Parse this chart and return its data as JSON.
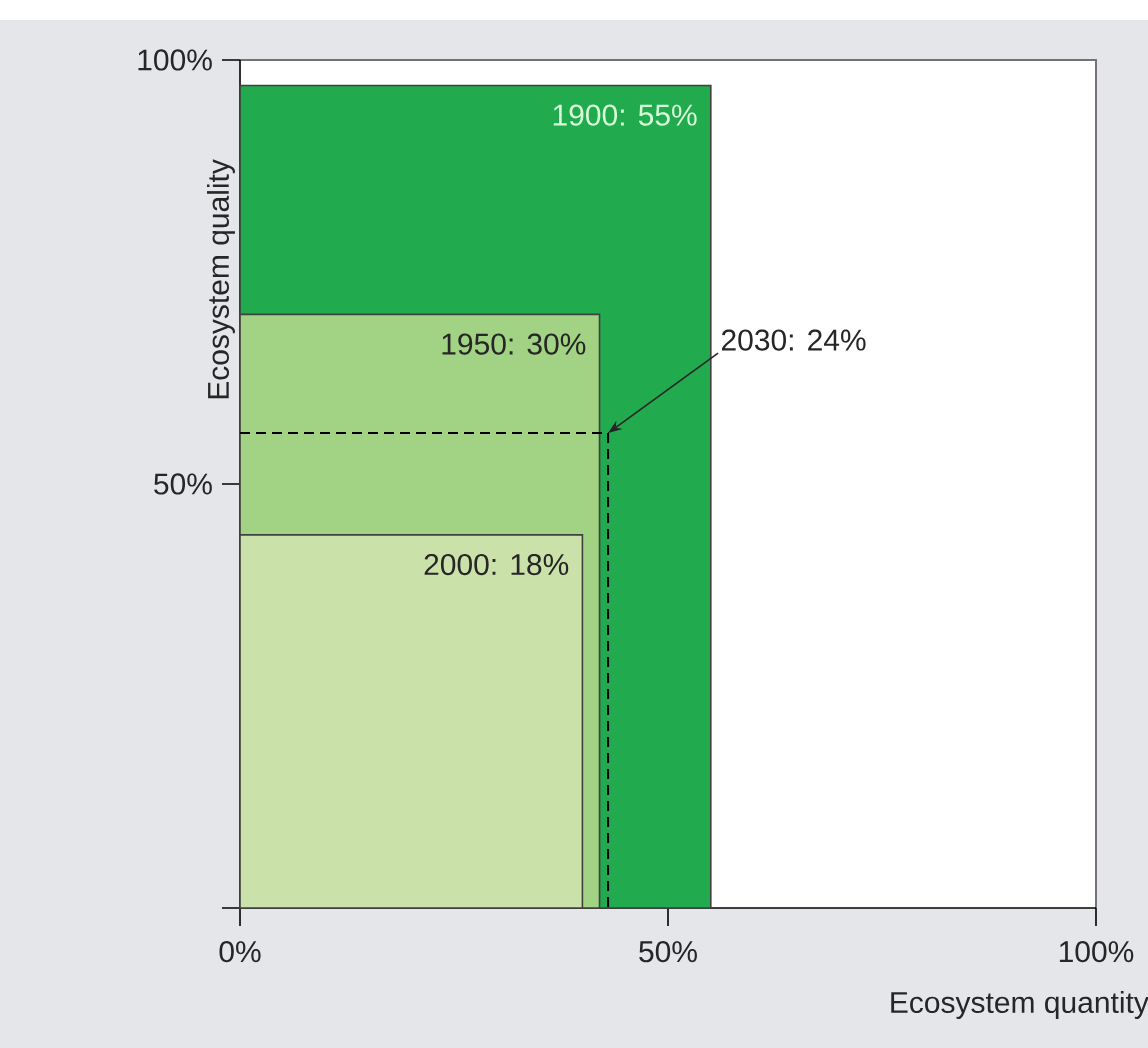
{
  "chart_data": {
    "type": "area",
    "xlabel": "Ecosystem quantity",
    "ylabel": "Ecosystem quality",
    "xlim": [
      0,
      100
    ],
    "ylim": [
      0,
      100
    ],
    "xticks": [
      {
        "value": 0,
        "label": "0%"
      },
      {
        "value": 50,
        "label": "50%"
      },
      {
        "value": 100,
        "label": "100%"
      }
    ],
    "yticks": [
      {
        "value": 0,
        "label": null
      },
      {
        "value": 50,
        "label": "50%"
      },
      {
        "value": 100,
        "label": "100%"
      }
    ],
    "series": [
      {
        "name": "1900: 55%",
        "color": "#21aa4e",
        "x": [
          0,
          55
        ],
        "values": [
          97,
          97
        ]
      },
      {
        "name": "1950: 30%",
        "color": "#a2d283",
        "x": [
          0,
          42
        ],
        "values": [
          70,
          70
        ]
      },
      {
        "name": "2000: 18%",
        "color": "#cae2aa",
        "x": [
          0,
          40
        ],
        "values": [
          44,
          44
        ]
      },
      {
        "name": "2030: 24%",
        "type": "line",
        "line_style": "dashed",
        "color": "#000000",
        "x": [
          0,
          43,
          43
        ],
        "values": [
          56,
          56,
          0
        ]
      }
    ]
  }
}
